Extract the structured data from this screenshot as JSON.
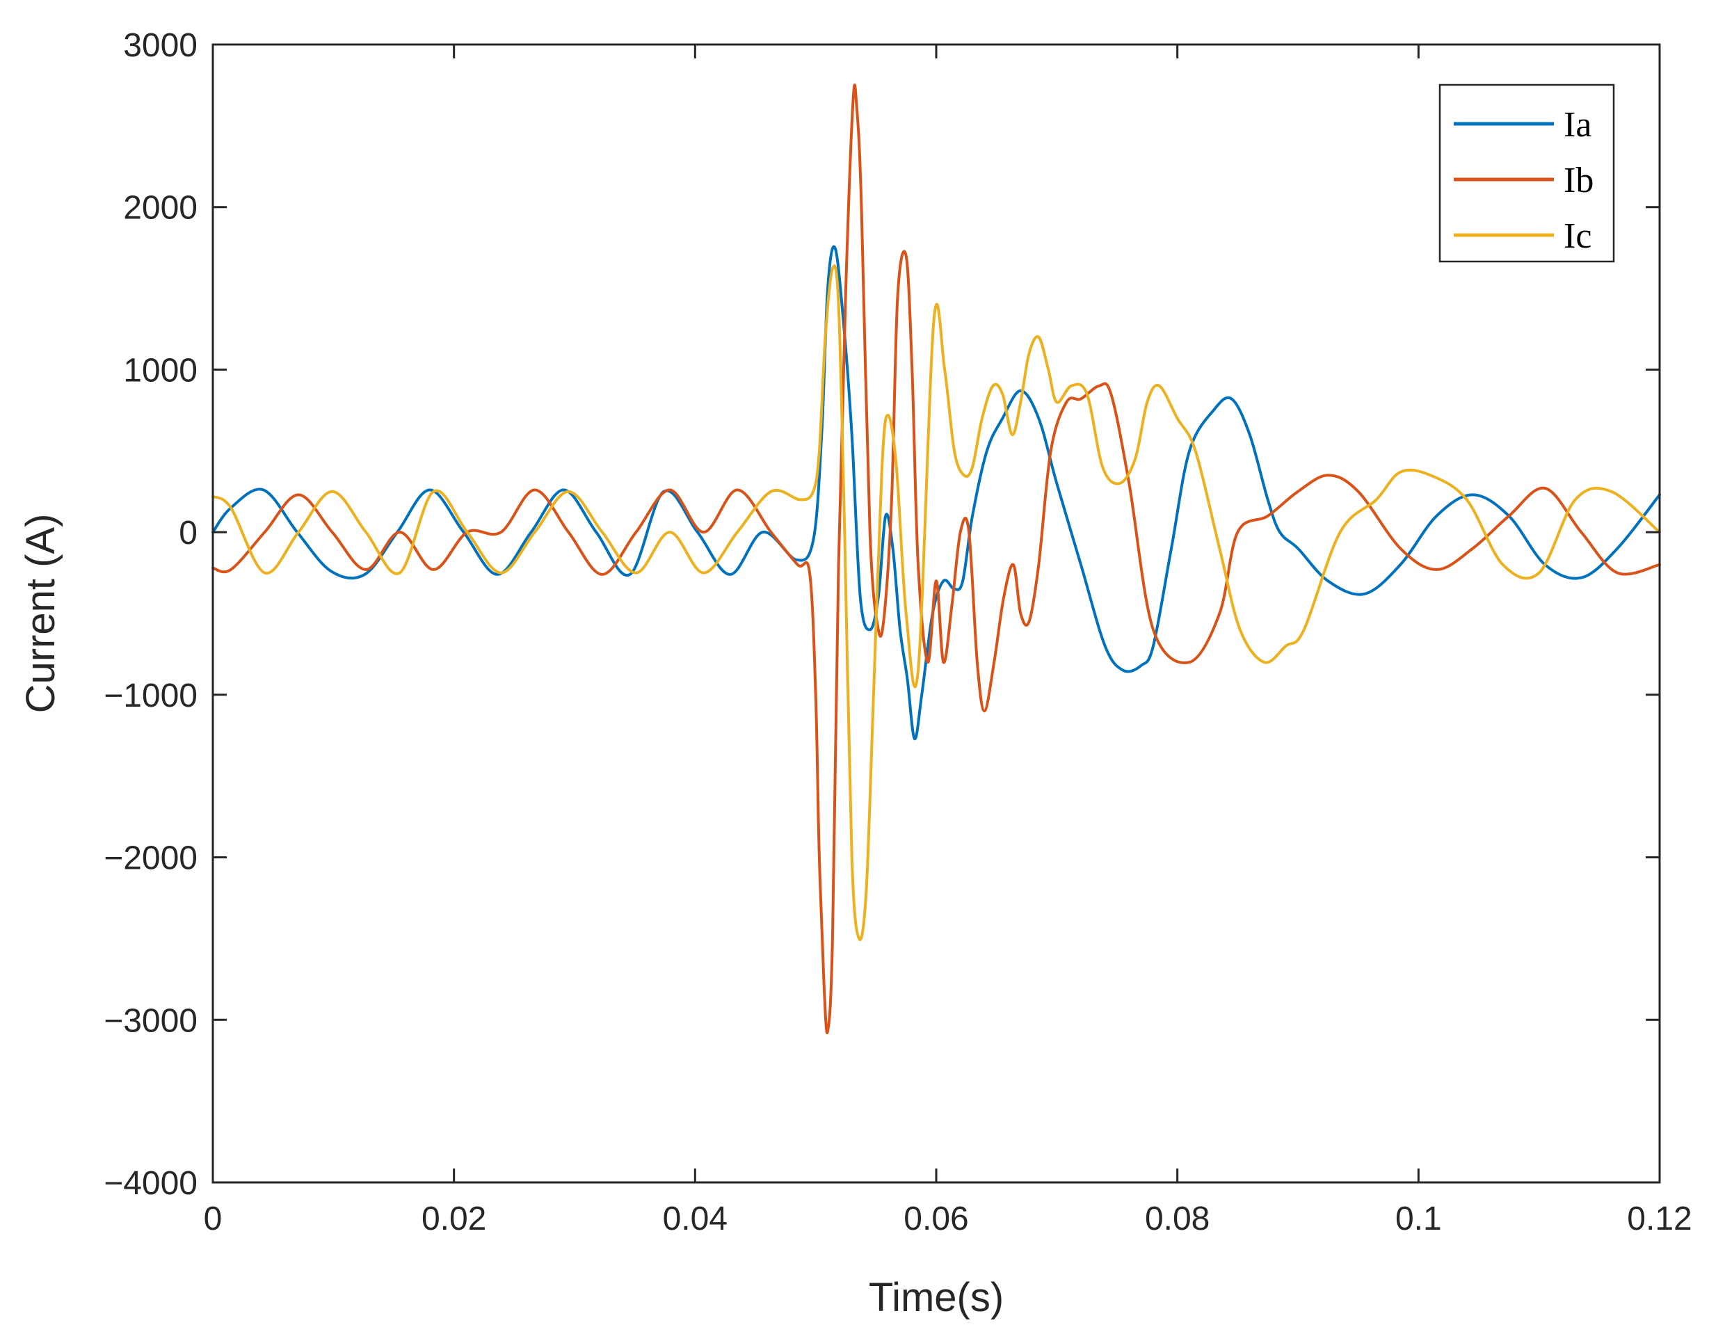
{
  "chart_data": {
    "type": "line",
    "xlabel": "Time(s)",
    "ylabel": "Current (A)",
    "xlim": [
      0,
      0.12
    ],
    "ylim": [
      -4000,
      3000
    ],
    "xticks": [
      0,
      0.02,
      0.04,
      0.06,
      0.08,
      0.1,
      0.12
    ],
    "xtick_labels": [
      "0",
      "0.02",
      "0.04",
      "0.06",
      "0.08",
      "0.1",
      "0.12"
    ],
    "yticks": [
      -4000,
      -3000,
      -2000,
      -1000,
      0,
      1000,
      2000,
      3000
    ],
    "ytick_labels": [
      "−4000",
      "−3000",
      "−2000",
      "−1000",
      "0",
      "1000",
      "2000",
      "3000"
    ],
    "grid": false,
    "legend_position": "top-right",
    "series": [
      {
        "name": "Ia",
        "color": "#0072BD",
        "x": [
          0,
          0.0015,
          0.0042,
          0.007,
          0.0098,
          0.0126,
          0.0153,
          0.018,
          0.0208,
          0.0236,
          0.0264,
          0.0291,
          0.0318,
          0.0346,
          0.0374,
          0.0402,
          0.0429,
          0.0456,
          0.0484,
          0.0498,
          0.0505,
          0.051,
          0.0516,
          0.0523,
          0.053,
          0.0537,
          0.0545,
          0.0552,
          0.0558,
          0.0564,
          0.057,
          0.0576,
          0.0582,
          0.0588,
          0.0597,
          0.0606,
          0.0615,
          0.0622,
          0.063,
          0.0642,
          0.0655,
          0.067,
          0.0685,
          0.07,
          0.072,
          0.074,
          0.0755,
          0.077,
          0.078,
          0.0795,
          0.081,
          0.083,
          0.0845,
          0.086,
          0.0875,
          0.0885,
          0.09,
          0.0925,
          0.0955,
          0.0985,
          0.1015,
          0.1045,
          0.1075,
          0.1105,
          0.1135,
          0.1165,
          0.12
        ],
        "y": [
          0,
          150,
          260,
          0,
          -240,
          -260,
          0,
          260,
          0,
          -260,
          0,
          260,
          0,
          -260,
          250,
          0,
          -260,
          0,
          -170,
          -50,
          600,
          1500,
          1750,
          1300,
          600,
          -400,
          -600,
          -400,
          100,
          -100,
          -600,
          -900,
          -1270,
          -1000,
          -500,
          -300,
          -350,
          -300,
          100,
          500,
          700,
          870,
          700,
          300,
          -200,
          -700,
          -850,
          -820,
          -700,
          -100,
          500,
          750,
          820,
          600,
          200,
          0,
          -100,
          -300,
          -380,
          -200,
          100,
          230,
          100,
          -200,
          -280,
          -100,
          230
        ]
      },
      {
        "name": "Ib",
        "color": "#D95319",
        "x": [
          0,
          0.0015,
          0.0043,
          0.0071,
          0.0099,
          0.0127,
          0.0155,
          0.0183,
          0.0211,
          0.0239,
          0.0267,
          0.0295,
          0.0323,
          0.0351,
          0.0379,
          0.0407,
          0.0435,
          0.0463,
          0.0485,
          0.0495,
          0.05,
          0.0503,
          0.0507,
          0.051,
          0.0514,
          0.0519,
          0.0525,
          0.0531,
          0.0534,
          0.0538,
          0.0545,
          0.0552,
          0.0557,
          0.0563,
          0.0568,
          0.0575,
          0.058,
          0.0585,
          0.0593,
          0.06,
          0.0606,
          0.0613,
          0.062,
          0.0627,
          0.0634,
          0.064,
          0.0648,
          0.0656,
          0.0664,
          0.067,
          0.0677,
          0.0685,
          0.0695,
          0.0708,
          0.072,
          0.0735,
          0.0745,
          0.076,
          0.078,
          0.081,
          0.0835,
          0.085,
          0.0875,
          0.09,
          0.0925,
          0.095,
          0.0985,
          0.1015,
          0.1045,
          0.1075,
          0.1105,
          0.1135,
          0.1165,
          0.12
        ],
        "y": [
          -220,
          -230,
          0,
          230,
          0,
          -230,
          0,
          -230,
          0,
          0,
          260,
          0,
          -260,
          0,
          260,
          0,
          260,
          0,
          -200,
          -250,
          -1000,
          -2000,
          -2800,
          -3070,
          -2500,
          -200,
          1500,
          2650,
          2620,
          2000,
          0,
          -600,
          -500,
          200,
          1450,
          1700,
          1000,
          -200,
          -800,
          -300,
          -800,
          -450,
          0,
          10,
          -800,
          -1100,
          -800,
          -400,
          -200,
          -500,
          -550,
          -200,
          500,
          800,
          820,
          900,
          850,
          300,
          -600,
          -800,
          -500,
          0,
          100,
          250,
          350,
          250,
          -100,
          -230,
          -100,
          100,
          270,
          0,
          -250,
          -200
        ]
      },
      {
        "name": "Ic",
        "color": "#EDB120",
        "x": [
          0,
          0.0015,
          0.0043,
          0.0071,
          0.0099,
          0.0127,
          0.0155,
          0.0183,
          0.0211,
          0.0239,
          0.0267,
          0.0295,
          0.0323,
          0.0351,
          0.0379,
          0.0407,
          0.0435,
          0.0463,
          0.0487,
          0.0498,
          0.0503,
          0.0508,
          0.0514,
          0.0519,
          0.0524,
          0.053,
          0.0536,
          0.0542,
          0.0548,
          0.0555,
          0.056,
          0.0567,
          0.0575,
          0.0585,
          0.0598,
          0.0607,
          0.0615,
          0.0623,
          0.063,
          0.0638,
          0.0647,
          0.0655,
          0.0663,
          0.067,
          0.0677,
          0.0685,
          0.0693,
          0.07,
          0.0712,
          0.0725,
          0.0738,
          0.0752,
          0.0765,
          0.0775,
          0.0785,
          0.08,
          0.0815,
          0.0835,
          0.0852,
          0.0872,
          0.089,
          0.0905,
          0.0935,
          0.0965,
          0.0985,
          0.101,
          0.104,
          0.107,
          0.11,
          0.113,
          0.116,
          0.12
        ],
        "y": [
          220,
          150,
          -250,
          0,
          250,
          0,
          -250,
          250,
          0,
          -250,
          0,
          250,
          0,
          -250,
          0,
          -250,
          0,
          250,
          200,
          250,
          500,
          1200,
          1620,
          1400,
          0,
          -2000,
          -2500,
          -2200,
          -1000,
          400,
          720,
          400,
          -500,
          -850,
          1300,
          1000,
          500,
          350,
          400,
          700,
          900,
          850,
          600,
          800,
          1100,
          1200,
          1000,
          800,
          900,
          850,
          400,
          300,
          450,
          800,
          900,
          700,
          500,
          -100,
          -600,
          -800,
          -700,
          -600,
          0,
          200,
          370,
          350,
          200,
          -200,
          -250,
          200,
          250,
          0
        ]
      }
    ]
  }
}
